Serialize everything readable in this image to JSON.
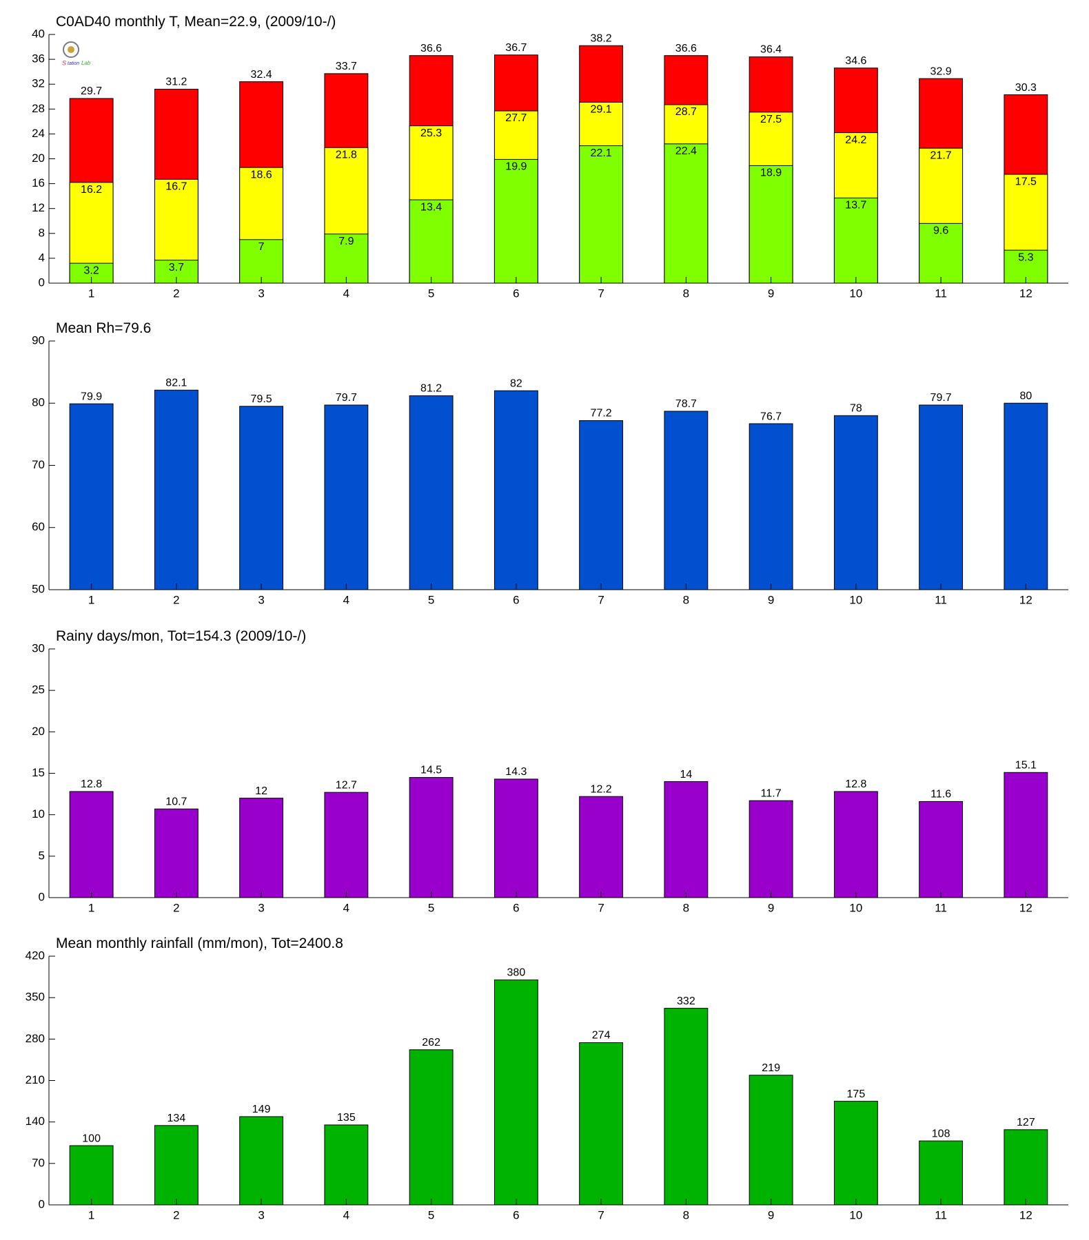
{
  "chart_data": [
    {
      "type": "bar",
      "title": "C0AD40 monthly T, Mean=22.9, (2009/10-/)",
      "categories": [
        "1",
        "2",
        "3",
        "4",
        "5",
        "6",
        "7",
        "8",
        "9",
        "10",
        "11",
        "12"
      ],
      "series": [
        {
          "color": "#ff0000",
          "values": [
            29.7,
            31.2,
            32.4,
            33.7,
            36.6,
            36.7,
            38.2,
            36.6,
            36.4,
            34.6,
            32.9,
            30.3
          ]
        },
        {
          "color": "#ffff00",
          "values": [
            16.2,
            16.7,
            18.6,
            21.8,
            25.3,
            27.7,
            29.1,
            28.7,
            27.5,
            24.2,
            21.7,
            17.5
          ]
        },
        {
          "color": "#80ff00",
          "values": [
            3.2,
            3.7,
            7,
            7.9,
            13.4,
            19.9,
            22.1,
            22.4,
            18.9,
            13.7,
            9.6,
            5.3
          ]
        }
      ],
      "ylim": [
        0,
        40
      ],
      "yticks": [
        0,
        4,
        8,
        12,
        16,
        20,
        24,
        28,
        32,
        36,
        40
      ]
    },
    {
      "type": "bar",
      "title": "Mean Rh=79.6",
      "categories": [
        "1",
        "2",
        "3",
        "4",
        "5",
        "6",
        "7",
        "8",
        "9",
        "10",
        "11",
        "12"
      ],
      "values": [
        79.9,
        82.1,
        79.5,
        79.7,
        81.2,
        82,
        77.2,
        78.7,
        76.7,
        78,
        79.7,
        80
      ],
      "color": "#0050d0",
      "ylim": [
        50,
        90
      ],
      "yticks": [
        50,
        60,
        70,
        80,
        90
      ]
    },
    {
      "type": "bar",
      "title": "Rainy days/mon, Tot=154.3 (2009/10-/)",
      "categories": [
        "1",
        "2",
        "3",
        "4",
        "5",
        "6",
        "7",
        "8",
        "9",
        "10",
        "11",
        "12"
      ],
      "values": [
        12.8,
        10.7,
        12,
        12.7,
        14.5,
        14.3,
        12.2,
        14,
        11.7,
        12.8,
        11.6,
        15.1
      ],
      "color": "#9900cc",
      "ylim": [
        0,
        30
      ],
      "yticks": [
        0,
        5,
        10,
        15,
        20,
        25,
        30
      ]
    },
    {
      "type": "bar",
      "title": "Mean monthly rainfall (mm/mon), Tot=2400.8",
      "categories": [
        "1",
        "2",
        "3",
        "4",
        "5",
        "6",
        "7",
        "8",
        "9",
        "10",
        "11",
        "12"
      ],
      "values": [
        100,
        134,
        149,
        135,
        262,
        380,
        274,
        332,
        219,
        175,
        108,
        127
      ],
      "color": "#00b300",
      "ylim": [
        0,
        420
      ],
      "yticks": [
        0,
        70,
        140,
        210,
        280,
        350,
        420
      ]
    }
  ]
}
